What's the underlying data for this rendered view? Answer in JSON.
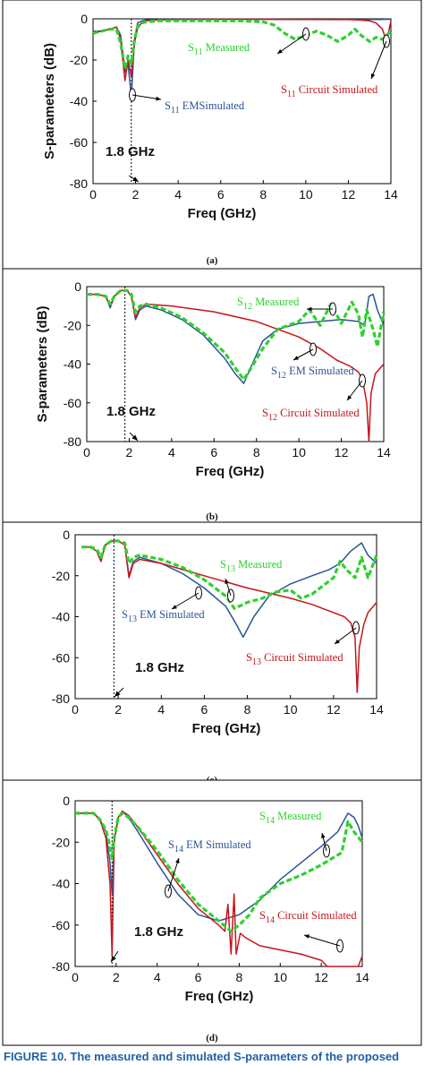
{
  "colors": {
    "em_simulated": "#2a5496",
    "circuit_simulated": "#c4161c",
    "measured": "#2ed12e"
  },
  "caption": "FIGURE 10. The measured and simulated S-parameters of the proposed",
  "chart_data": [
    {
      "type": "line",
      "panel_label": "(a)",
      "xlabel": "Freq (GHz)",
      "ylabel": "S-parameters (dB)",
      "xlim": [
        0,
        14
      ],
      "ylim": [
        -80,
        0
      ],
      "xticks": [
        0,
        2,
        4,
        6,
        8,
        10,
        12,
        14
      ],
      "yticks": [
        0,
        -20,
        -40,
        -60,
        -80
      ],
      "marker": {
        "x": 1.8,
        "label": "1.8 GHz"
      },
      "annotations": [
        {
          "sub": "11",
          "text": "Measured",
          "series": "measured"
        },
        {
          "sub": "11",
          "text": "EMSimulated",
          "series": "em_simulated"
        },
        {
          "sub": "11",
          "text": "Circuit Simulated",
          "series": "circuit_simulated"
        }
      ],
      "series": [
        {
          "key": "em_simulated",
          "style": "solid",
          "x": [
            0,
            0.4,
            0.8,
            1.1,
            1.3,
            1.5,
            1.65,
            1.8,
            1.95,
            2.1,
            2.3,
            2.5,
            3,
            4,
            6,
            8,
            10,
            12,
            13,
            13.5,
            13.8,
            14
          ],
          "y": [
            -6,
            -6,
            -5,
            -4,
            -8,
            -26,
            -22,
            -38,
            -10,
            -2,
            -1,
            -0.5,
            -0.3,
            -0.2,
            -0.2,
            -0.2,
            -0.3,
            -0.3,
            -0.3,
            -0.3,
            -0.2,
            -0.2
          ]
        },
        {
          "key": "circuit_simulated",
          "style": "solid",
          "x": [
            0,
            0.4,
            0.8,
            1.1,
            1.3,
            1.5,
            1.65,
            1.8,
            1.95,
            2.1,
            2.3,
            2.5,
            3,
            4,
            6,
            8,
            10,
            12,
            12.5,
            13,
            13.3,
            13.6,
            13.8,
            14
          ],
          "y": [
            -7,
            -6,
            -5,
            -4,
            -10,
            -30,
            -20,
            -28,
            -12,
            -4,
            -2,
            -1,
            -0.5,
            -0.3,
            -0.2,
            -0.2,
            -0.3,
            -0.4,
            -0.5,
            -1,
            -2,
            -5,
            -11,
            -1
          ]
        },
        {
          "key": "measured",
          "style": "dashed",
          "x": [
            0,
            0.4,
            0.8,
            1.1,
            1.3,
            1.5,
            1.65,
            1.8,
            1.95,
            2.1,
            2.3,
            2.5,
            3,
            4,
            5,
            6,
            7,
            8,
            8.5,
            9,
            9.5,
            10,
            10.5,
            11,
            11.5,
            12,
            12.3,
            12.6,
            13,
            13.3,
            13.6,
            14
          ],
          "y": [
            -7,
            -6,
            -5,
            -5,
            -12,
            -24,
            -18,
            -22,
            -10,
            -4,
            -2,
            -1.5,
            -1,
            -1,
            -1,
            -1,
            -1,
            -1.5,
            -3,
            -7,
            -10,
            -8,
            -6,
            -8,
            -11,
            -8,
            -5,
            -8,
            -11,
            -9,
            -10,
            -6
          ]
        }
      ]
    },
    {
      "type": "line",
      "panel_label": "(b)",
      "xlabel": "Freq (GHz)",
      "ylabel": "S-parameters (dB)",
      "xlim": [
        0,
        14
      ],
      "ylim": [
        -80,
        0
      ],
      "xticks": [
        0,
        2,
        4,
        6,
        8,
        10,
        12,
        14
      ],
      "yticks": [
        0,
        -20,
        -40,
        -60,
        -80
      ],
      "marker": {
        "x": 1.8,
        "label": "1.8 GHz"
      },
      "annotations": [
        {
          "sub": "12",
          "text": "Measured",
          "series": "measured"
        },
        {
          "sub": "12",
          "text": "EM Simulated",
          "series": "em_simulated"
        },
        {
          "sub": "12",
          "text": "Circuit Simulated",
          "series": "circuit_simulated"
        }
      ],
      "series": [
        {
          "key": "em_simulated",
          "style": "solid",
          "x": [
            0,
            0.5,
            0.9,
            1.1,
            1.3,
            1.6,
            1.9,
            2.1,
            2.3,
            2.5,
            2.8,
            3.5,
            4.5,
            5.5,
            6.5,
            7,
            7.4,
            7.8,
            8.3,
            9,
            10,
            11,
            12,
            12.8,
            13.1,
            13.3,
            13.5,
            13.7,
            14
          ],
          "y": [
            -4,
            -4,
            -5,
            -11,
            -5,
            -2,
            -2,
            -5,
            -17,
            -12,
            -10,
            -12,
            -17,
            -25,
            -37,
            -45,
            -50,
            -40,
            -28,
            -22,
            -19,
            -18,
            -17,
            -18,
            -20,
            -5,
            -4,
            -12,
            -20
          ]
        },
        {
          "key": "circuit_simulated",
          "style": "solid",
          "x": [
            0,
            0.5,
            0.9,
            1.1,
            1.3,
            1.6,
            1.9,
            2.1,
            2.3,
            2.5,
            2.8,
            4,
            6,
            8,
            9,
            10,
            11,
            11.8,
            12.4,
            12.8,
            13,
            13.2,
            13.3,
            13.4,
            13.6,
            14
          ],
          "y": [
            -4,
            -4,
            -5,
            -10,
            -5,
            -2,
            -2,
            -5,
            -16,
            -11,
            -9,
            -10,
            -13,
            -18,
            -22,
            -26,
            -32,
            -38,
            -41,
            -44,
            -48,
            -60,
            -80,
            -55,
            -45,
            -40
          ]
        },
        {
          "key": "measured",
          "style": "dashed",
          "x": [
            0,
            0.5,
            0.9,
            1.1,
            1.3,
            1.6,
            1.9,
            2.1,
            2.3,
            2.5,
            2.8,
            3.5,
            4.5,
            5.5,
            6.5,
            7,
            7.4,
            7.8,
            8.3,
            9,
            10,
            10.5,
            11,
            11.5,
            12,
            12.5,
            12.8,
            13,
            13.2,
            13.5,
            13.7,
            14
          ],
          "y": [
            -4,
            -4,
            -5,
            -9,
            -5,
            -2,
            -2,
            -4,
            -13,
            -10,
            -9,
            -11,
            -16,
            -24,
            -34,
            -42,
            -48,
            -41,
            -32,
            -22,
            -18,
            -12,
            -20,
            -9,
            -19,
            -8,
            -14,
            -26,
            -12,
            -22,
            -31,
            -13
          ]
        }
      ]
    },
    {
      "type": "line",
      "panel_label": "(c)",
      "xlabel": "Freq (GHz)",
      "xlim": [
        0,
        14
      ],
      "ylim": [
        -80,
        0
      ],
      "xticks": [
        0,
        2,
        4,
        6,
        8,
        10,
        12,
        14
      ],
      "yticks": [
        0,
        -20,
        -40,
        -60,
        -80
      ],
      "marker": {
        "x": 1.8,
        "label": "1.8 GHz"
      },
      "annotations": [
        {
          "sub": "13",
          "text": "Measured",
          "series": "measured"
        },
        {
          "sub": "13",
          "text": "EM Simulated",
          "series": "em_simulated"
        },
        {
          "sub": "13",
          "text": "Circuit Simulated",
          "series": "circuit_simulated"
        }
      ],
      "series": [
        {
          "key": "em_simulated",
          "style": "solid",
          "x": [
            0.3,
            0.7,
            1,
            1.2,
            1.4,
            1.7,
            2,
            2.3,
            2.5,
            2.7,
            3,
            4,
            5,
            6,
            7,
            7.5,
            7.8,
            8.3,
            9,
            10,
            11,
            11.8,
            12.3,
            12.8,
            13.3,
            13.6,
            14
          ],
          "y": [
            -6,
            -6,
            -8,
            -13,
            -5,
            -3,
            -3,
            -5,
            -20,
            -13,
            -11,
            -14,
            -19,
            -26,
            -35,
            -44,
            -50,
            -40,
            -30,
            -24,
            -20,
            -17,
            -14,
            -8,
            -4,
            -10,
            -14
          ]
        },
        {
          "key": "circuit_simulated",
          "style": "solid",
          "x": [
            0.3,
            0.7,
            1,
            1.2,
            1.4,
            1.7,
            2,
            2.3,
            2.5,
            2.7,
            3,
            4,
            6,
            8,
            10,
            11,
            12,
            12.5,
            12.8,
            13,
            13.1,
            13.2,
            13.4,
            13.6,
            14
          ],
          "y": [
            -6,
            -6,
            -8,
            -13,
            -5,
            -3,
            -3,
            -5,
            -21,
            -14,
            -12,
            -14,
            -20,
            -26,
            -31,
            -34,
            -38,
            -40,
            -43,
            -50,
            -77,
            -55,
            -44,
            -38,
            -33
          ]
        },
        {
          "key": "measured",
          "style": "dashed",
          "x": [
            0.3,
            0.7,
            1,
            1.2,
            1.4,
            1.7,
            2,
            2.3,
            2.5,
            2.7,
            3,
            4,
            5,
            6,
            7,
            7.4,
            8,
            8.7,
            9.3,
            10,
            10.5,
            11,
            11.5,
            12,
            12.3,
            12.6,
            13,
            13.3,
            13.6,
            14
          ],
          "y": [
            -6,
            -6,
            -7,
            -11,
            -5,
            -3,
            -3,
            -4,
            -14,
            -11,
            -10,
            -12,
            -16,
            -22,
            -30,
            -36,
            -33,
            -31,
            -28,
            -27,
            -31,
            -29,
            -25,
            -21,
            -13,
            -17,
            -21,
            -11,
            -21,
            -10
          ]
        }
      ]
    },
    {
      "type": "line",
      "panel_label": "(d)",
      "xlabel": "Freq (GHz)",
      "xlim": [
        0,
        14
      ],
      "ylim": [
        -80,
        0
      ],
      "xticks": [
        0,
        2,
        4,
        6,
        8,
        10,
        12,
        14
      ],
      "yticks": [
        0,
        -20,
        -40,
        -60,
        -80
      ],
      "marker": {
        "x": 1.8,
        "label": "1.8 GHz"
      },
      "annotations": [
        {
          "sub": "14",
          "text": "Measured",
          "series": "measured"
        },
        {
          "sub": "14",
          "text": "EM Simulated",
          "series": "em_simulated"
        },
        {
          "sub": "14",
          "text": "Circuit Simulated",
          "series": "circuit_simulated"
        }
      ],
      "series": [
        {
          "key": "em_simulated",
          "style": "solid",
          "x": [
            0,
            0.5,
            0.9,
            1.2,
            1.5,
            1.7,
            1.8,
            1.9,
            2.1,
            2.3,
            2.6,
            3,
            4,
            5,
            6,
            7,
            8,
            9,
            10,
            11,
            12,
            12.8,
            13.3,
            13.6,
            13.8,
            14
          ],
          "y": [
            -6,
            -6,
            -6,
            -9,
            -15,
            -30,
            -45,
            -20,
            -8,
            -5,
            -8,
            -14,
            -30,
            -45,
            -55,
            -58,
            -55,
            -48,
            -38,
            -30,
            -22,
            -15,
            -6,
            -8,
            -12,
            -18
          ]
        },
        {
          "key": "circuit_simulated",
          "style": "solid",
          "x": [
            0,
            0.5,
            0.9,
            1.2,
            1.5,
            1.7,
            1.8,
            1.9,
            2.1,
            2.3,
            2.6,
            3,
            4,
            5,
            6,
            7,
            7.3,
            7.45,
            7.6,
            7.75,
            7.85,
            8.05,
            8.3,
            9,
            10,
            11,
            12,
            12.3,
            12.5,
            13,
            13.5,
            13.8,
            14
          ],
          "y": [
            -6,
            -6,
            -6,
            -9,
            -18,
            -40,
            -75,
            -20,
            -8,
            -5,
            -7,
            -12,
            -26,
            -40,
            -52,
            -60,
            -63,
            -50,
            -74,
            -45,
            -74,
            -64,
            -66,
            -70,
            -72,
            -74,
            -77,
            -80,
            -84,
            -89,
            -88,
            -80,
            -75
          ]
        },
        {
          "key": "measured",
          "style": "dashed",
          "x": [
            0,
            0.5,
            0.9,
            1.2,
            1.5,
            1.7,
            1.8,
            1.9,
            2.1,
            2.3,
            2.6,
            3,
            4,
            5,
            6,
            7,
            7.6,
            8,
            8.5,
            9,
            10,
            11,
            12,
            12.5,
            13,
            13.3,
            13.6,
            14
          ],
          "y": [
            -6,
            -6,
            -6,
            -9,
            -14,
            -22,
            -28,
            -18,
            -8,
            -6,
            -8,
            -12,
            -24,
            -38,
            -50,
            -58,
            -63,
            -60,
            -55,
            -47,
            -40,
            -36,
            -31,
            -28,
            -25,
            -10,
            -15,
            -20
          ]
        }
      ]
    }
  ]
}
